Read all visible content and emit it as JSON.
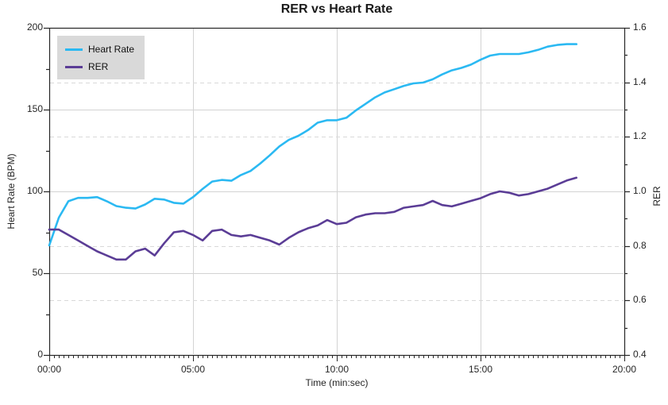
{
  "chart_data": {
    "type": "line",
    "title": "RER vs Heart Rate",
    "xlabel": "Time (min:sec)",
    "ylabel_left": "Heart Rate (BPM)",
    "ylabel_right": "RER",
    "x_axis": {
      "min_seconds": 0,
      "max_seconds": 1200,
      "major_tick_seconds": 300,
      "minor_tick_seconds": 10,
      "tick_labels": [
        "00:00",
        "05:00",
        "10:00",
        "15:00",
        "20:00"
      ]
    },
    "y_left_axis": {
      "min": 0,
      "max": 200,
      "major_tick": 50,
      "minor_tick": 25,
      "tick_labels": [
        "0",
        "50",
        "100",
        "150",
        "200"
      ]
    },
    "y_right_axis": {
      "min": 0.4,
      "max": 1.6,
      "major_tick": 0.2,
      "minor_tick": 0.1,
      "tick_labels": [
        "0.4",
        "0.6",
        "0.8",
        "1.0",
        "1.2",
        "1.4",
        "1.6"
      ],
      "dashed_gridline_values": [
        0.6,
        0.8,
        1.2,
        1.4
      ]
    },
    "grid": {
      "solid_horizontal_bpm": [
        50,
        100,
        150
      ],
      "solid_vertical_seconds": [
        300,
        600,
        900
      ],
      "solid_color": "#d3d3d3",
      "dashed_color": "#d9d9d9"
    },
    "legend": {
      "position": "top-left",
      "background": "#d9d9d9"
    },
    "x_seconds": [
      0,
      20,
      40,
      60,
      80,
      100,
      120,
      140,
      160,
      180,
      200,
      220,
      240,
      260,
      280,
      300,
      320,
      340,
      360,
      380,
      400,
      420,
      440,
      460,
      480,
      500,
      520,
      540,
      560,
      580,
      600,
      620,
      640,
      660,
      680,
      700,
      720,
      740,
      760,
      780,
      800,
      820,
      840,
      860,
      880,
      900,
      920,
      940,
      960,
      980,
      1000,
      1020,
      1040,
      1060,
      1080,
      1100
    ],
    "series": [
      {
        "name": "Heart Rate",
        "axis": "left",
        "color": "#2bb9f2",
        "values": [
          67,
          84,
          94,
          96,
          96,
          96.5,
          94,
          91,
          90,
          89.5,
          92,
          95.5,
          95,
          93,
          92.5,
          96.5,
          101.5,
          106,
          107,
          106.5,
          110,
          112.5,
          117,
          122,
          127.5,
          131.5,
          134,
          137.5,
          142,
          143.5,
          143.5,
          145,
          149.5,
          153.5,
          157.5,
          160.5,
          162.5,
          164.5,
          166,
          166.5,
          168.5,
          171.5,
          174,
          175.5,
          177.5,
          180.5,
          183,
          184,
          184,
          184,
          185,
          186.5,
          188.5,
          189.5,
          190,
          190
        ]
      },
      {
        "name": "RER",
        "axis": "right",
        "color": "#5b3d96",
        "values": [
          0.86,
          0.86,
          0.84,
          0.82,
          0.8,
          0.78,
          0.765,
          0.75,
          0.75,
          0.78,
          0.79,
          0.765,
          0.81,
          0.85,
          0.855,
          0.84,
          0.82,
          0.855,
          0.86,
          0.84,
          0.835,
          0.84,
          0.83,
          0.82,
          0.805,
          0.83,
          0.85,
          0.865,
          0.875,
          0.895,
          0.88,
          0.885,
          0.905,
          0.915,
          0.92,
          0.92,
          0.925,
          0.94,
          0.945,
          0.95,
          0.965,
          0.95,
          0.945,
          0.955,
          0.965,
          0.975,
          0.99,
          1.0,
          0.995,
          0.985,
          0.99,
          1.0,
          1.01,
          1.025,
          1.04,
          1.05
        ]
      }
    ]
  }
}
